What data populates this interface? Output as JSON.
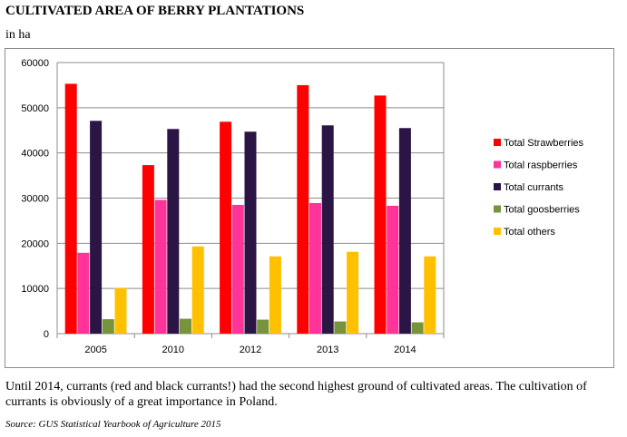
{
  "title": "CULTIVATED AREA OF BERRY PLANTATIONS",
  "unit": "in ha",
  "note": "Until 2014, currants (red and black currants!) had the second highest ground of cultivated areas. The cultivation of currants is obviously of a great importance in Poland.",
  "source": "Source: GUS Statistical Yearbook of Agriculture 2015",
  "chart_data": {
    "type": "bar",
    "title": "",
    "xlabel": "",
    "ylabel": "",
    "categories": [
      "2005",
      "2010",
      "2012",
      "2013",
      "2014"
    ],
    "ylim": [
      0,
      60000
    ],
    "yticks": [
      0,
      10000,
      20000,
      30000,
      40000,
      50000,
      60000
    ],
    "grid": true,
    "legend": "right",
    "series": [
      {
        "name": "Total Strawberries",
        "color": "#ff0000",
        "values": [
          55300,
          37300,
          46900,
          55000,
          52700
        ]
      },
      {
        "name": "Total raspberries",
        "color": "#ff3399",
        "values": [
          17900,
          29600,
          28500,
          28900,
          28300
        ]
      },
      {
        "name": "Total currants",
        "color": "#2a1545",
        "values": [
          47100,
          45300,
          44700,
          46100,
          45500
        ]
      },
      {
        "name": "Total goosberries",
        "color": "#77933c",
        "values": [
          3200,
          3300,
          3100,
          2700,
          2500
        ]
      },
      {
        "name": "Total others",
        "color": "#ffc000",
        "values": [
          10100,
          19300,
          17100,
          18100,
          17100
        ]
      }
    ]
  }
}
